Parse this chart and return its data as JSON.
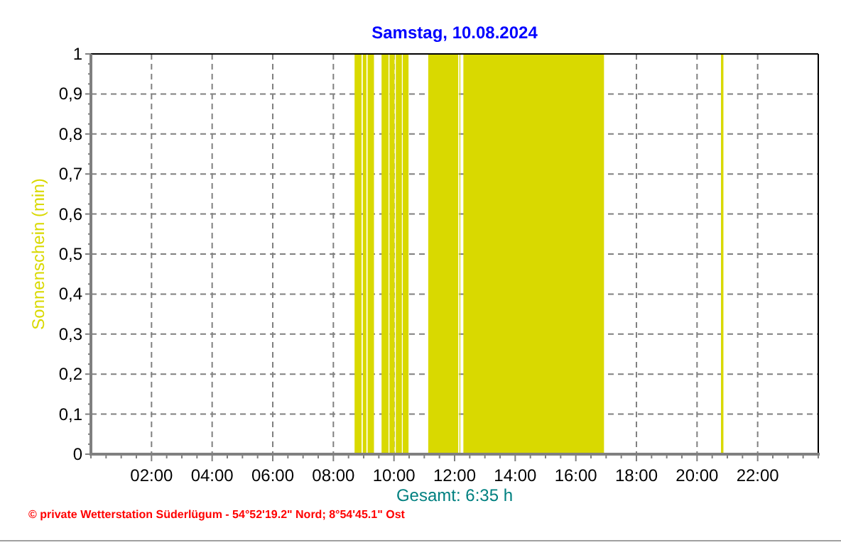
{
  "chart_data": {
    "type": "area",
    "title": "Samstag, 10.08.2024",
    "ylabel": "Sonnenschein (min)",
    "annotations": [
      "Gesamt: 6:35 h",
      "© private Wetterstation Süderlügum - 54°52'19.2\" Nord; 8°54'45.1\" Ost"
    ],
    "x": [
      0,
      8.7,
      8.7,
      8.93,
      8.93,
      8.97,
      8.97,
      9.09,
      9.09,
      9.13,
      9.13,
      9.34,
      9.34,
      9.59,
      9.59,
      9.82,
      9.82,
      9.85,
      9.85,
      10.02,
      10.02,
      10.06,
      10.06,
      10.26,
      10.26,
      10.29,
      10.29,
      10.48,
      10.48,
      11.13,
      11.13,
      12.12,
      12.12,
      12.16,
      12.16,
      12.19,
      12.19,
      12.29,
      12.29,
      16.93,
      16.93,
      20.79,
      20.79,
      20.87,
      20.87,
      24
    ],
    "series": [
      {
        "color": "#d9d900",
        "values": [
          0,
          0,
          1,
          1,
          0,
          0,
          1,
          1,
          0,
          0,
          1,
          1,
          0,
          0,
          1,
          1,
          0,
          0,
          1,
          1,
          0,
          0,
          1,
          1,
          0,
          0,
          1,
          1,
          0,
          0,
          1,
          1,
          0,
          0,
          1,
          1,
          0,
          0,
          1,
          1,
          0,
          0,
          1,
          1,
          0,
          0
        ]
      }
    ],
    "xlim": [
      0,
      24
    ],
    "xticks": [
      {
        "value": 0,
        "label": null
      },
      {
        "value": 0.5,
        "label": null
      },
      {
        "value": 1,
        "label": null
      },
      {
        "value": 1.5,
        "label": null
      },
      {
        "value": 2,
        "label": "02:00"
      },
      {
        "value": 2.5,
        "label": null
      },
      {
        "value": 3,
        "label": null
      },
      {
        "value": 3.5,
        "label": null
      },
      {
        "value": 4,
        "label": "04:00"
      },
      {
        "value": 4.5,
        "label": null
      },
      {
        "value": 5,
        "label": null
      },
      {
        "value": 5.5,
        "label": null
      },
      {
        "value": 6,
        "label": "06:00"
      },
      {
        "value": 6.5,
        "label": null
      },
      {
        "value": 7,
        "label": null
      },
      {
        "value": 7.5,
        "label": null
      },
      {
        "value": 8,
        "label": "08:00"
      },
      {
        "value": 8.5,
        "label": null
      },
      {
        "value": 9,
        "label": null
      },
      {
        "value": 9.5,
        "label": null
      },
      {
        "value": 10,
        "label": "10:00"
      },
      {
        "value": 10.5,
        "label": null
      },
      {
        "value": 11,
        "label": null
      },
      {
        "value": 11.5,
        "label": null
      },
      {
        "value": 12,
        "label": "12:00"
      },
      {
        "value": 12.5,
        "label": null
      },
      {
        "value": 13,
        "label": null
      },
      {
        "value": 13.5,
        "label": null
      },
      {
        "value": 14,
        "label": "14:00"
      },
      {
        "value": 14.5,
        "label": null
      },
      {
        "value": 15,
        "label": null
      },
      {
        "value": 15.5,
        "label": null
      },
      {
        "value": 16,
        "label": "16:00"
      },
      {
        "value": 16.5,
        "label": null
      },
      {
        "value": 17,
        "label": null
      },
      {
        "value": 17.5,
        "label": null
      },
      {
        "value": 18,
        "label": "18:00"
      },
      {
        "value": 18.5,
        "label": null
      },
      {
        "value": 19,
        "label": null
      },
      {
        "value": 19.5,
        "label": null
      },
      {
        "value": 20,
        "label": "20:00"
      },
      {
        "value": 20.5,
        "label": null
      },
      {
        "value": 21,
        "label": null
      },
      {
        "value": 21.5,
        "label": null
      },
      {
        "value": 22,
        "label": "22:00"
      },
      {
        "value": 22.5,
        "label": null
      },
      {
        "value": 23,
        "label": null
      },
      {
        "value": 23.5,
        "label": null
      },
      {
        "value": 24,
        "label": null
      }
    ],
    "ylim": [
      0,
      1
    ],
    "yticks": [
      {
        "value": 0,
        "label": "0"
      },
      {
        "value": 0.1,
        "label": "0,1"
      },
      {
        "value": 0.2,
        "label": "0,2"
      },
      {
        "value": 0.3,
        "label": "0,3"
      },
      {
        "value": 0.4,
        "label": "0,4"
      },
      {
        "value": 0.5,
        "label": "0,5"
      },
      {
        "value": 0.6,
        "label": "0,6"
      },
      {
        "value": 0.7,
        "label": "0,7"
      },
      {
        "value": 0.8,
        "label": "0,8"
      },
      {
        "value": 0.9,
        "label": "0,9"
      },
      {
        "value": 1,
        "label": "1"
      }
    ],
    "grid": true
  }
}
